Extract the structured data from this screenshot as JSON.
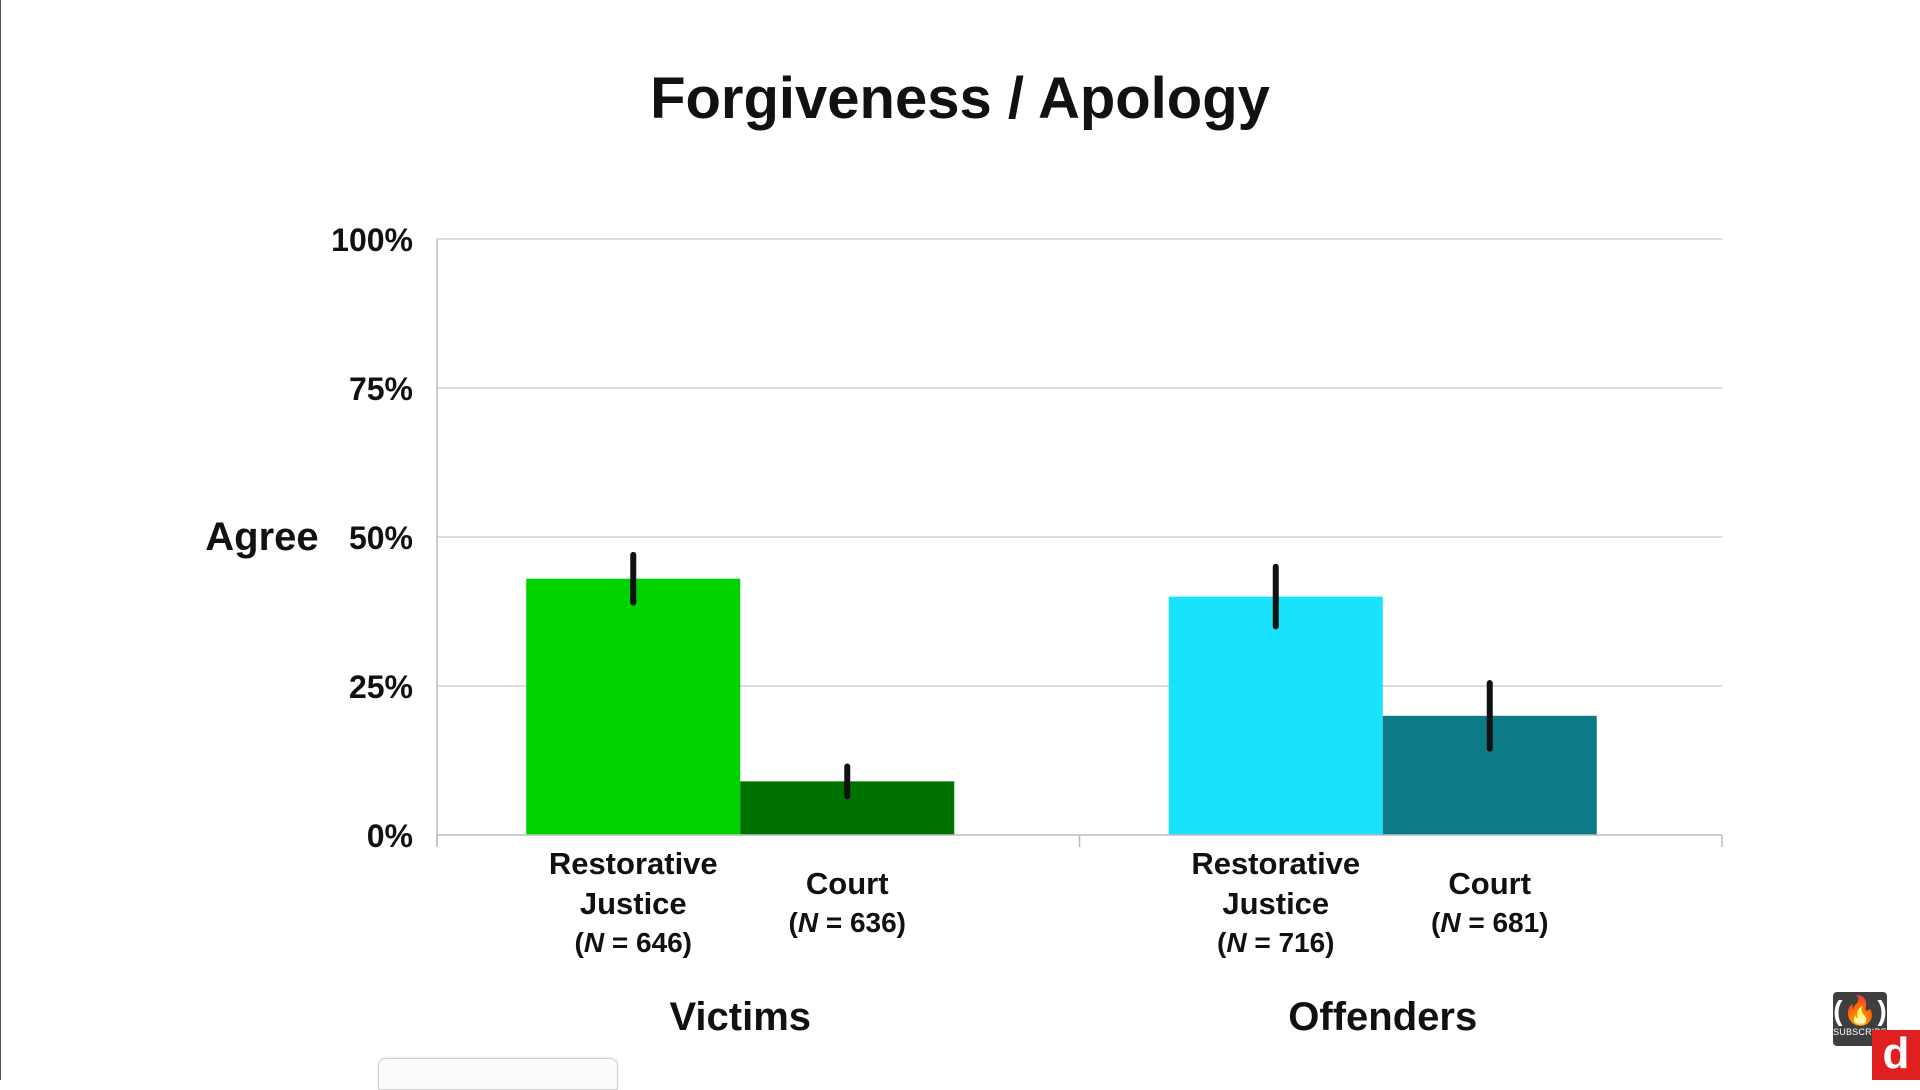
{
  "chart_data": {
    "type": "bar",
    "title": "Forgiveness / Apology",
    "ylabel": "Agree",
    "ylim": [
      0,
      100
    ],
    "yticks": [
      "0%",
      "25%",
      "50%",
      "75%",
      "100%"
    ],
    "ytick_values": [
      0,
      25,
      50,
      75,
      100
    ],
    "grid": true,
    "groups": [
      {
        "name": "Victims",
        "bars": [
          {
            "label_lines": [
              "Restorative",
              "Justice"
            ],
            "n_label": "N",
            "n_rest": " = 646)",
            "value": 43,
            "error_low": 39,
            "error_high": 47,
            "color": "#00d200"
          },
          {
            "label_lines": [
              "Court"
            ],
            "n_label": "N",
            "n_rest": " = 636)",
            "value": 9,
            "error_low": 6.5,
            "error_high": 11.5,
            "color": "#007200"
          }
        ]
      },
      {
        "name": "Offenders",
        "bars": [
          {
            "label_lines": [
              "Restorative",
              "Justice"
            ],
            "n_label": "N",
            "n_rest": " = 716)",
            "value": 40,
            "error_low": 35,
            "error_high": 45,
            "color": "#18e2fc"
          },
          {
            "label_lines": [
              "Court"
            ],
            "n_label": "N",
            "n_rest": " = 681)",
            "value": 20,
            "error_low": 14.5,
            "error_high": 25.5,
            "color": "#0d7b86"
          }
        ]
      }
    ]
  },
  "watermark": {
    "glyph": "(🔥)",
    "text": "SUBSCRIBE"
  },
  "logo_badge": {
    "text": "d"
  }
}
